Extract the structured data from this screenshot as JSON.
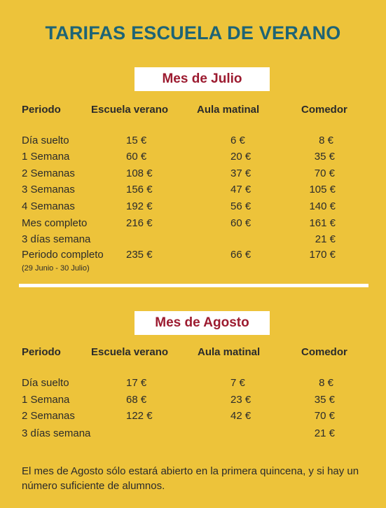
{
  "title": "TARIFAS ESCUELA DE VERANO",
  "julio": {
    "heading": "Mes de Julio",
    "columns": [
      "Periodo",
      "Escuela verano",
      "Aula matinal",
      "Comedor"
    ],
    "rows": [
      {
        "periodo": "Día suelto",
        "escuela": "15 €",
        "aula": "6 €",
        "comedor": "8 €"
      },
      {
        "periodo": "1 Semana",
        "escuela": "60 €",
        "aula": "20 €",
        "comedor": "35 €"
      },
      {
        "periodo": "2 Semanas",
        "escuela": "108 €",
        "aula": "37 €",
        "comedor": "70 €"
      },
      {
        "periodo": "3 Semanas",
        "escuela": "156 €",
        "aula": "47 €",
        "comedor": "105 €"
      },
      {
        "periodo": "4 Semanas",
        "escuela": "192 €",
        "aula": "56 €",
        "comedor": "140 €"
      },
      {
        "periodo": "Mes completo",
        "escuela": "216 €",
        "aula": "60 €",
        "comedor": "161 €"
      },
      {
        "periodo": "3 días semana",
        "escuela": "",
        "aula": "",
        "comedor": "21 €"
      },
      {
        "periodo": "Periodo completo",
        "escuela": "235 €",
        "aula": "66 €",
        "comedor": "170 €"
      }
    ],
    "periodo_note": "(29 Junio - 30 Julio)"
  },
  "agosto": {
    "heading": "Mes de Agosto",
    "columns": [
      "Periodo",
      "Escuela verano",
      "Aula matinal",
      "Comedor"
    ],
    "rows": [
      {
        "periodo": "Día suelto",
        "escuela": "17 €",
        "aula": "7 €",
        "comedor": "8 €"
      },
      {
        "periodo": "1 Semana",
        "escuela": "68 €",
        "aula": "23 €",
        "comedor": "35 €"
      },
      {
        "periodo": "2 Semanas",
        "escuela": "122 €",
        "aula": "42 €",
        "comedor": "70 €"
      },
      {
        "periodo": "3 días semana",
        "escuela": "",
        "aula": "",
        "comedor": "21 €"
      }
    ]
  },
  "footer": "El mes de Agosto sólo estará abierto en la primera quincena, y si hay un número suficiente de alumnos.",
  "colors": {
    "background": "#EDC33A",
    "title": "#1E6475",
    "month_heading": "#9C1B30",
    "box": "#FFFFFF"
  }
}
